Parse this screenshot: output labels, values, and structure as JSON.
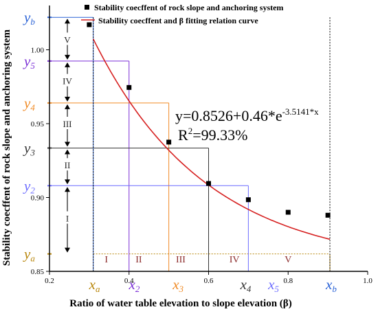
{
  "chart_data": {
    "type": "scatter",
    "xlabel": "Ratio of water table elevation to slope elevation (β)",
    "ylabel": "Stability coecffent of rock slope and anchoring system",
    "xlim": [
      0.2,
      1.0
    ],
    "ylim": [
      0.85,
      1.03
    ],
    "x_ticks": [
      "0.2",
      "0.4",
      "0.6",
      "0.8",
      "1.0"
    ],
    "x_tick_values": [
      0.2,
      0.4,
      0.6,
      0.8,
      1.0
    ],
    "y_ticks": [
      "0.85",
      "0.90",
      "0.95",
      "1.00"
    ],
    "y_tick_values": [
      0.85,
      0.9,
      0.95,
      1.0
    ],
    "legend": {
      "position": "top-right",
      "scatter_label": "Stability coecffent of rock slope and anchoring system",
      "curve_label": "Stability coecffent and β fitting relation curve"
    },
    "series": [
      {
        "kind": "points",
        "x": [
          0.3,
          0.4,
          0.5,
          0.6,
          0.7,
          0.8,
          0.9
        ],
        "y": [
          1.017,
          0.9745,
          0.9375,
          0.9095,
          0.8985,
          0.89,
          0.888
        ]
      },
      {
        "kind": "fit",
        "formula": {
          "a": 0.8526,
          "b": 0.46,
          "c": -3.5141
        },
        "x_range": [
          0.31,
          0.905
        ]
      }
    ],
    "equation": {
      "main": "y=0.8526+0.46*e",
      "exponent": "-3.5141*x",
      "r2_prefix": "R",
      "r2_sup": "2",
      "r2_value": "=99.33%"
    },
    "markers": [
      {
        "xlabel": "x",
        "xsub": "a",
        "ylabel": "y",
        "ysub": "a",
        "x": 0.905,
        "y": 0.8618,
        "x_line_from": 0.31,
        "color": "#b8860b"
      },
      {
        "xlabel": "x",
        "xsub": "2",
        "ylabel": "y",
        "ysub": "5",
        "x": 0.4,
        "y": 0.9924,
        "color": "#7b2fd6"
      },
      {
        "xlabel": "x",
        "xsub": "3",
        "ylabel": "y",
        "ysub": "4",
        "x": 0.5,
        "y": 0.964,
        "color": "#f08a24"
      },
      {
        "xlabel": "x",
        "xsub": "4",
        "ylabel": "y",
        "ysub": "3",
        "x": 0.6,
        "y": 0.9335,
        "color": "#333333"
      },
      {
        "xlabel": "x",
        "xsub": "5",
        "ylabel": "y",
        "ysub": "2",
        "x": 0.7,
        "y": 0.908,
        "color": "#6c6cff"
      },
      {
        "xlabel": "x",
        "xsub": "b",
        "ylabel": "y",
        "ysub": "b",
        "x": 0.31,
        "y": 1.022,
        "color": "#2a62d6"
      }
    ],
    "marker_label_x": [
      0.31,
      0.41,
      0.52,
      0.69,
      0.76,
      0.905
    ],
    "x_zones": [
      "I",
      "II",
      "III",
      "IV",
      "V"
    ],
    "x_zone_positions": [
      0.343,
      0.4245,
      0.53,
      0.665,
      0.8
    ],
    "y_zones": [
      "V",
      "IV",
      "III",
      "II",
      "I"
    ],
    "y_zone_positions": [
      1.007,
      0.979,
      0.95,
      0.922,
      0.886
    ],
    "y_zone_arrow_bounds": [
      1.022,
      0.9924,
      0.964,
      0.9335,
      0.908,
      0.8618
    ]
  }
}
